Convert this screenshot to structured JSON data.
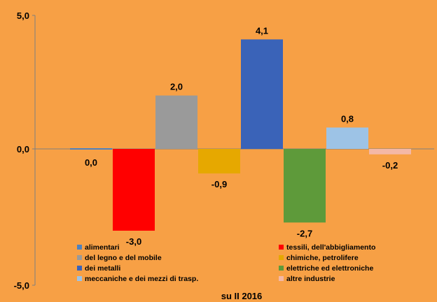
{
  "chart_data": {
    "type": "bar",
    "xlabel": "su II 2016",
    "ylim": [
      -5,
      5
    ],
    "y_ticks": [
      "5,0",
      "0,0",
      "-5,0"
    ],
    "y_tick_values": [
      5,
      0,
      -5
    ],
    "grid": false,
    "legend_position": "bottom",
    "series": [
      {
        "name": "alimentari",
        "value": 0.0,
        "label": "0,0",
        "color": "#4F81BD"
      },
      {
        "name": "tessili, dell'abbigliamento",
        "value": -3.0,
        "label": "-3,0",
        "color": "#FF0000"
      },
      {
        "name": "del legno e del mobile",
        "value": 2.0,
        "label": "2,0",
        "color": "#9A9A9A"
      },
      {
        "name": "chimiche, petrolifere",
        "value": -0.9,
        "label": "-0,9",
        "color": "#E6A800"
      },
      {
        "name": "dei metalli",
        "value": 4.1,
        "label": "4,1",
        "color": "#3A63B8"
      },
      {
        "name": "elettriche ed elettroniche",
        "value": -2.7,
        "label": "-2,7",
        "color": "#5E9A3A"
      },
      {
        "name": "meccaniche e dei mezzi di trasp.",
        "value": 0.8,
        "label": "0,8",
        "color": "#9DC3E6"
      },
      {
        "name": "altre industrie",
        "value": -0.2,
        "label": "-0,2",
        "color": "#F4B8A6"
      }
    ]
  }
}
